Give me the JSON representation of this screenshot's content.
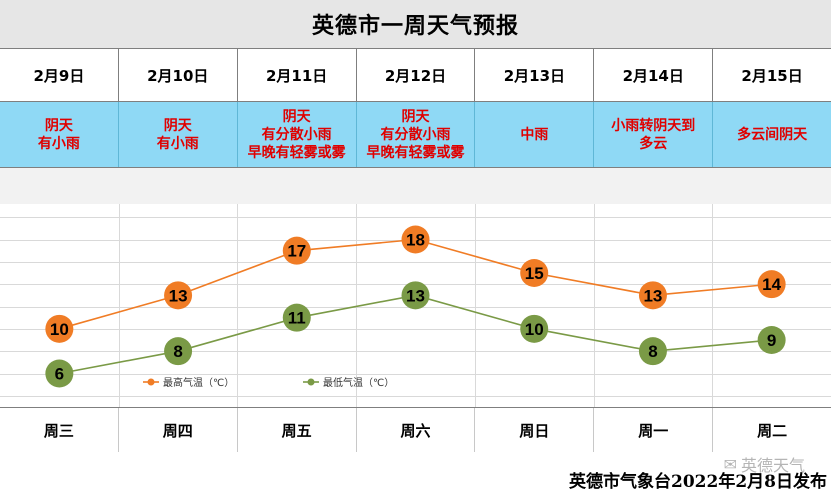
{
  "title": "英德市一周天气预报",
  "dates": [
    "2月9日",
    "2月10日",
    "2月11日",
    "2月12日",
    "2月13日",
    "2月14日",
    "2月15日"
  ],
  "conditions": [
    "阴天\n有小雨",
    "阴天\n有小雨",
    "阴天\n有分散小雨\n早晚有轻雾或雾",
    "阴天\n有分散小雨\n早晚有轻雾或雾",
    "中雨",
    "小雨转阴天到\n多云",
    "多云间阴天"
  ],
  "weekdays": [
    "周三",
    "周四",
    "周五",
    "周六",
    "周日",
    "周一",
    "周二"
  ],
  "chart_data": {
    "type": "line",
    "categories": [
      "周三",
      "周四",
      "周五",
      "周六",
      "周日",
      "周一",
      "周二"
    ],
    "series": [
      {
        "name": "最高气温（℃）",
        "values": [
          10,
          13,
          17,
          18,
          15,
          13,
          14
        ],
        "color": "#f07c25"
      },
      {
        "name": "最低气温（℃）",
        "values": [
          6,
          8,
          11,
          13,
          10,
          8,
          9
        ],
        "color": "#7a9a46"
      }
    ],
    "legend_position": "bottom-left",
    "grid": true,
    "ylim": [
      3,
      21
    ]
  },
  "colors": {
    "condition_bg": "#8fd9f5",
    "condition_text": "#e00000",
    "high_marker": "#f07c25",
    "low_marker": "#7a9a46"
  },
  "footer": {
    "publisher": "英德市气象台2022年2月8日发布",
    "watermark": "英德天气",
    "watermark_icon": "wechat-icon"
  }
}
